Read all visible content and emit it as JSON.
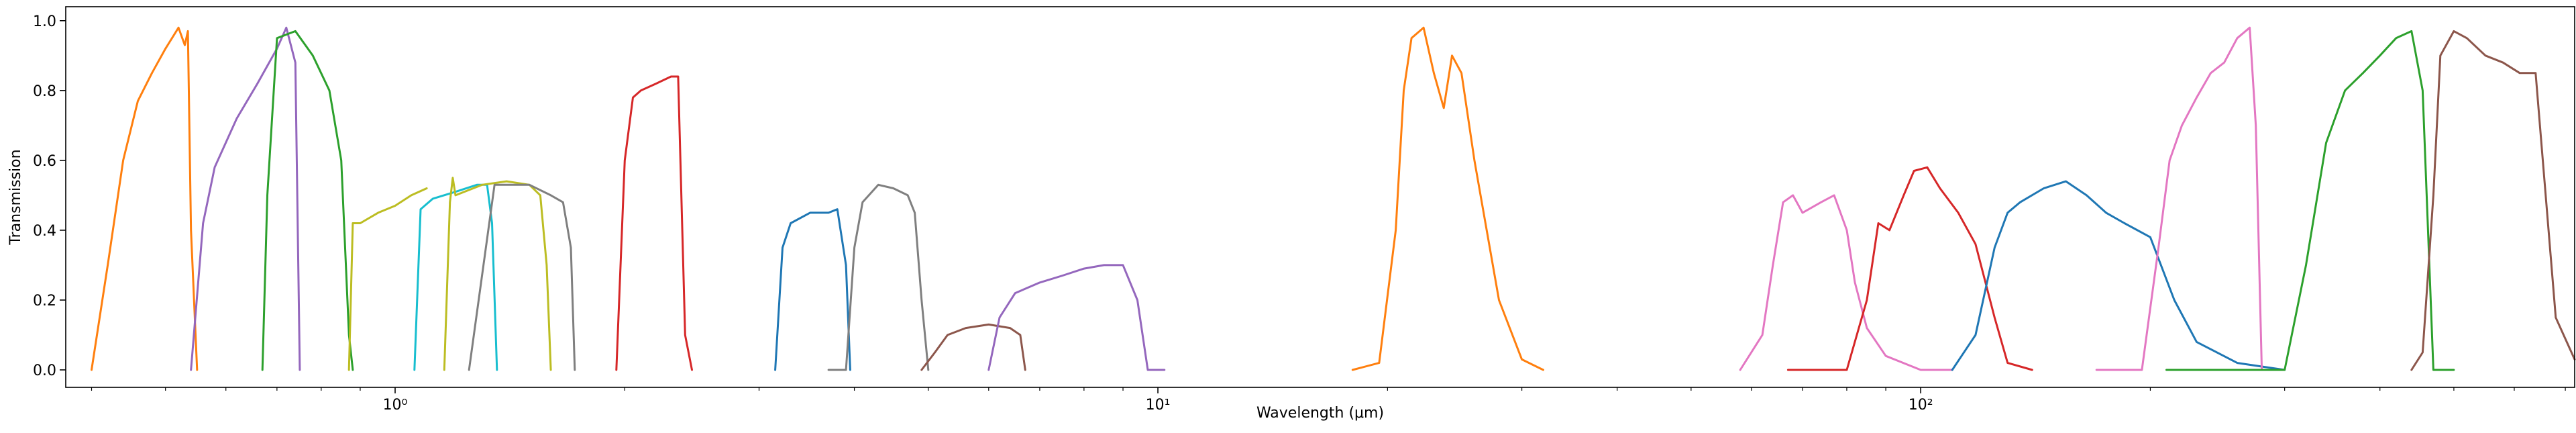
{
  "chart_data": {
    "type": "line",
    "xlabel": "Wavelength (μm)",
    "ylabel": "Transmission",
    "xscale": "log",
    "xlim": [
      0.37,
      720
    ],
    "ylim": [
      -0.05,
      1.04
    ],
    "grid": false,
    "legend": "none",
    "x_ticks": [
      {
        "value": 1,
        "label": "10⁰"
      },
      {
        "value": 10,
        "label": "10¹"
      },
      {
        "value": 100,
        "label": "10²"
      }
    ],
    "y_ticks": [
      {
        "value": 0.0,
        "label": "0.0"
      },
      {
        "value": 0.2,
        "label": "0.2"
      },
      {
        "value": 0.4,
        "label": "0.4"
      },
      {
        "value": 0.6,
        "label": "0.6"
      },
      {
        "value": 0.8,
        "label": "0.8"
      },
      {
        "value": 1.0,
        "label": "1.0"
      }
    ],
    "series": [
      {
        "color": "#ff7f0e",
        "x": [
          0.4,
          0.42,
          0.44,
          0.46,
          0.48,
          0.5,
          0.52,
          0.53,
          0.535,
          0.54,
          0.55
        ],
        "y": [
          0.0,
          0.3,
          0.6,
          0.77,
          0.85,
          0.92,
          0.98,
          0.93,
          0.97,
          0.4,
          0.0
        ]
      },
      {
        "color": "#9467bd",
        "x": [
          0.54,
          0.56,
          0.58,
          0.62,
          0.66,
          0.7,
          0.72,
          0.74,
          0.75
        ],
        "y": [
          0.0,
          0.42,
          0.58,
          0.72,
          0.82,
          0.92,
          0.98,
          0.88,
          0.0
        ]
      },
      {
        "color": "#2ca02c",
        "x": [
          0.67,
          0.68,
          0.7,
          0.74,
          0.78,
          0.82,
          0.85,
          0.87,
          0.88
        ],
        "y": [
          0.0,
          0.5,
          0.95,
          0.97,
          0.9,
          0.8,
          0.6,
          0.1,
          0.0
        ]
      },
      {
        "color": "#bcbd22",
        "x": [
          0.87,
          0.88,
          0.9,
          0.95,
          1.0,
          1.05,
          1.1
        ],
        "y": [
          0.0,
          0.42,
          0.42,
          0.45,
          0.47,
          0.5,
          0.52
        ]
      },
      {
        "color": "#17becf",
        "x": [
          1.06,
          1.08,
          1.12,
          1.2,
          1.28,
          1.32,
          1.34,
          1.36
        ],
        "y": [
          0.0,
          0.46,
          0.49,
          0.51,
          0.53,
          0.53,
          0.42,
          0.0
        ]
      },
      {
        "color": "#bcbd22",
        "x": [
          1.16,
          1.18,
          1.19,
          1.2,
          1.3,
          1.4,
          1.5,
          1.55,
          1.58,
          1.6
        ],
        "y": [
          0.0,
          0.48,
          0.55,
          0.5,
          0.53,
          0.54,
          0.53,
          0.5,
          0.3,
          0.0
        ]
      },
      {
        "color": "#7f7f7f",
        "x": [
          1.25,
          1.35,
          1.5,
          1.6,
          1.66,
          1.7,
          1.72
        ],
        "y": [
          0.0,
          0.53,
          0.53,
          0.5,
          0.48,
          0.35,
          0.0
        ]
      },
      {
        "color": "#d62728",
        "x": [
          1.95,
          2.0,
          2.05,
          2.1,
          2.2,
          2.3,
          2.35,
          2.4,
          2.45
        ],
        "y": [
          0.0,
          0.6,
          0.78,
          0.8,
          0.82,
          0.84,
          0.84,
          0.1,
          0.0
        ]
      },
      {
        "color": "#1f77b4",
        "x": [
          3.15,
          3.22,
          3.3,
          3.5,
          3.7,
          3.8,
          3.9,
          3.95
        ],
        "y": [
          0.0,
          0.35,
          0.42,
          0.45,
          0.45,
          0.46,
          0.3,
          0.0
        ]
      },
      {
        "color": "#7f7f7f",
        "x": [
          3.7,
          3.9,
          4.0,
          4.1,
          4.3,
          4.5,
          4.7,
          4.8,
          4.9,
          5.0
        ],
        "y": [
          0.0,
          0.0,
          0.35,
          0.48,
          0.53,
          0.52,
          0.5,
          0.45,
          0.2,
          0.0
        ]
      },
      {
        "color": "#8c564b",
        "x": [
          4.9,
          5.1,
          5.3,
          5.6,
          6.0,
          6.4,
          6.6,
          6.7
        ],
        "y": [
          0.0,
          0.05,
          0.1,
          0.12,
          0.13,
          0.12,
          0.1,
          0.0
        ]
      },
      {
        "color": "#9467bd",
        "x": [
          6.0,
          6.2,
          6.5,
          7.0,
          7.5,
          8.0,
          8.5,
          9.0,
          9.4,
          9.7,
          10.2
        ],
        "y": [
          0.0,
          0.15,
          0.22,
          0.25,
          0.27,
          0.29,
          0.3,
          0.3,
          0.2,
          0.0,
          0.0
        ]
      },
      {
        "color": "#ff7f0e",
        "x": [
          18.0,
          19.5,
          20.5,
          21.0,
          21.5,
          22.3,
          23.0,
          23.7,
          24.3,
          25.0,
          26.0,
          28.0,
          30.0,
          32.0
        ],
        "y": [
          0.0,
          0.02,
          0.4,
          0.8,
          0.95,
          0.98,
          0.85,
          0.75,
          0.9,
          0.85,
          0.6,
          0.2,
          0.03,
          0.0
        ]
      },
      {
        "color": "#e377c2",
        "x": [
          58,
          62,
          64,
          66,
          68,
          70,
          74,
          77,
          80,
          82,
          85,
          90,
          100,
          110
        ],
        "y": [
          0.0,
          0.1,
          0.3,
          0.48,
          0.5,
          0.45,
          0.48,
          0.5,
          0.4,
          0.25,
          0.12,
          0.04,
          0.0,
          0.0
        ]
      },
      {
        "color": "#d62728",
        "x": [
          67,
          80,
          85,
          88,
          91,
          95,
          98,
          102,
          106,
          112,
          118,
          125,
          130,
          140
        ],
        "y": [
          0.0,
          0.0,
          0.2,
          0.42,
          0.4,
          0.5,
          0.57,
          0.58,
          0.52,
          0.45,
          0.36,
          0.15,
          0.02,
          0.0
        ]
      },
      {
        "color": "#1f77b4",
        "x": [
          110,
          118,
          125,
          130,
          135,
          145,
          155,
          165,
          175,
          185,
          200,
          215,
          230,
          260,
          300
        ],
        "y": [
          0.0,
          0.1,
          0.35,
          0.45,
          0.48,
          0.52,
          0.54,
          0.5,
          0.45,
          0.42,
          0.38,
          0.2,
          0.08,
          0.02,
          0.0
        ]
      },
      {
        "color": "#e377c2",
        "x": [
          170,
          195,
          205,
          212,
          220,
          230,
          240,
          250,
          260,
          270,
          275,
          280
        ],
        "y": [
          0.0,
          0.0,
          0.35,
          0.6,
          0.7,
          0.78,
          0.85,
          0.88,
          0.95,
          0.98,
          0.7,
          0.0
        ]
      },
      {
        "color": "#2ca02c",
        "x": [
          210,
          300,
          320,
          340,
          360,
          380,
          400,
          420,
          440,
          455,
          470,
          500
        ],
        "y": [
          0.0,
          0.0,
          0.3,
          0.65,
          0.8,
          0.85,
          0.9,
          0.95,
          0.97,
          0.8,
          0.0,
          0.0
        ]
      },
      {
        "color": "#8c564b",
        "x": [
          440,
          455,
          470,
          480,
          500,
          520,
          550,
          580,
          610,
          640,
          680,
          720
        ],
        "y": [
          0.0,
          0.05,
          0.5,
          0.9,
          0.97,
          0.95,
          0.9,
          0.88,
          0.85,
          0.85,
          0.15,
          0.03
        ]
      }
    ]
  }
}
